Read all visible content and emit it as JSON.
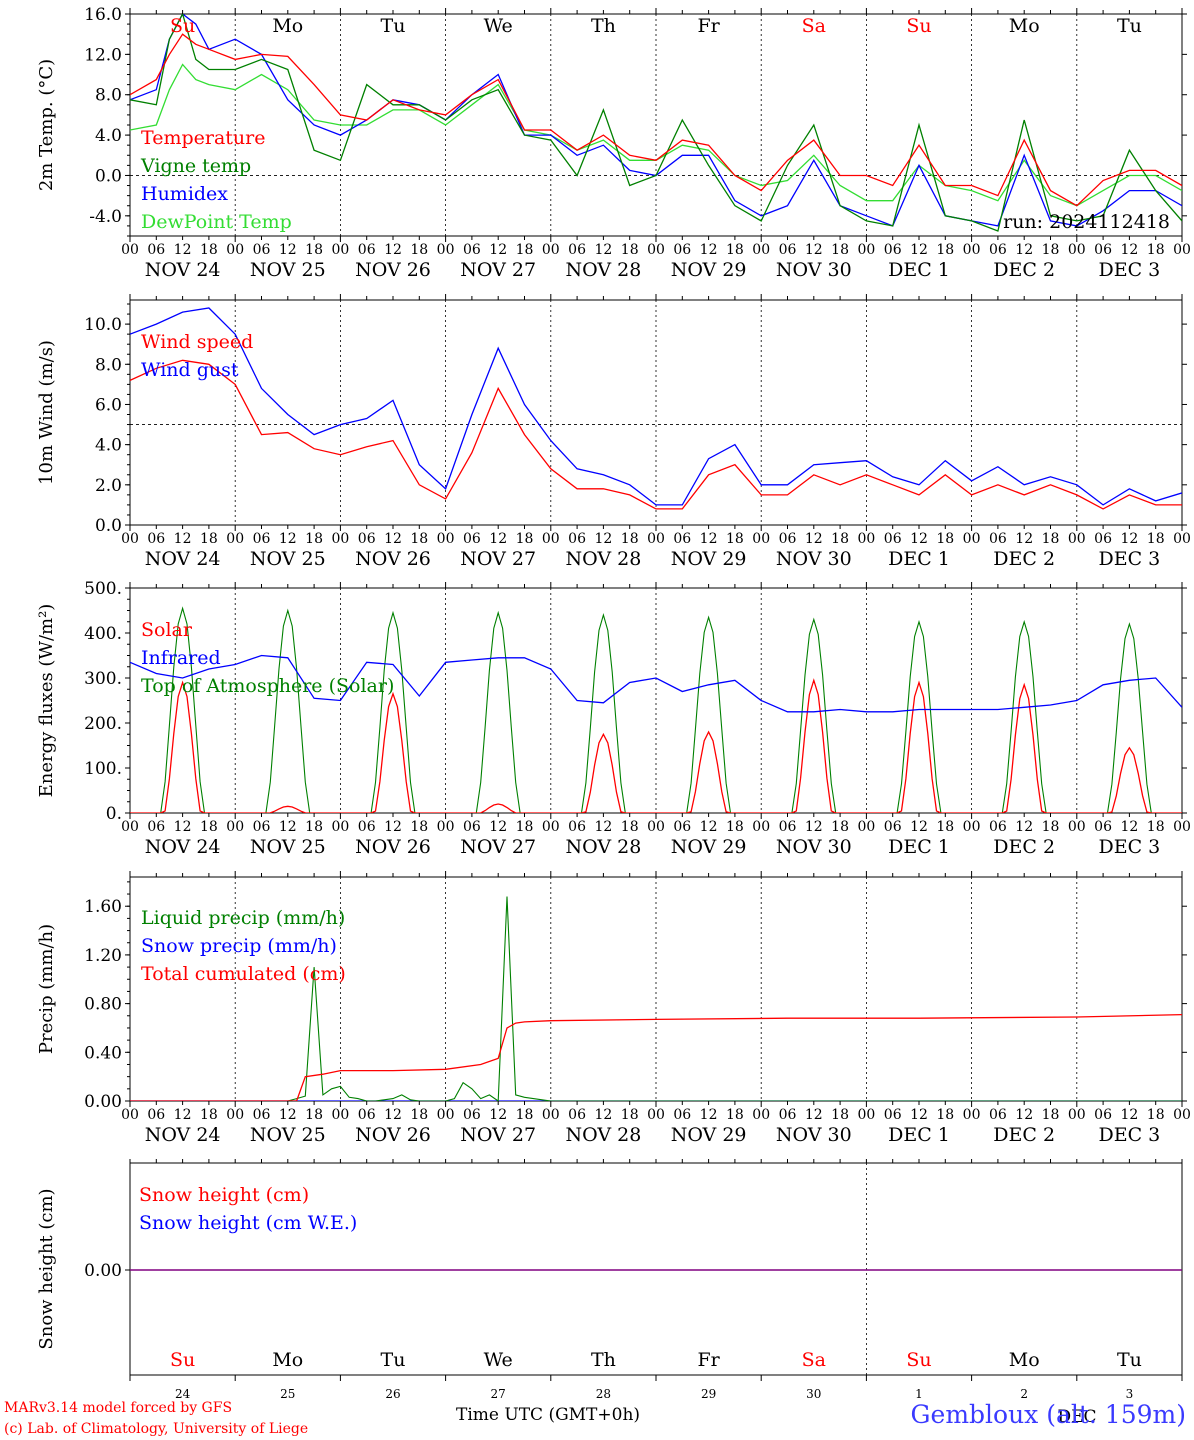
{
  "meta": {
    "credit_line1": "MARv3.14 model forced by GFS",
    "credit_line2": "(c) Lab. of Climatology, University of Liege",
    "xaxis_label": "Time UTC (GMT+0h)",
    "station": "Gembloux (alt. 159m)",
    "run": "run: 2024112418"
  },
  "colors": {
    "red": "#ff0000",
    "green": "#008000",
    "blue": "#0000ff",
    "lightgreen": "#33dd33",
    "purple": "#800080",
    "weekend": "#ff0000",
    "weekday": "#000000"
  },
  "days": {
    "short": [
      "Su",
      "Mo",
      "Tu",
      "We",
      "Th",
      "Fr",
      "Sa",
      "Su",
      "Mo",
      "Tu"
    ],
    "weekend": [
      true,
      false,
      false,
      false,
      false,
      false,
      true,
      true,
      false,
      false
    ],
    "dates": [
      "NOV 24",
      "NOV 25",
      "NOV 26",
      "NOV 27",
      "NOV 28",
      "NOV 29",
      "NOV 30",
      "DEC  1",
      "DEC  2",
      "DEC  3"
    ],
    "hours": [
      "00",
      "06",
      "12",
      "18"
    ],
    "end_hour": "00",
    "bottom_numbers": [
      "24",
      "25",
      "26",
      "27",
      "28",
      "29",
      "30",
      "1",
      "2",
      "3"
    ],
    "bottom_month_marker": "DEC"
  },
  "chart_data": [
    {
      "type": "line",
      "panel": "temperature",
      "ylabel": "2m Temp. (°C)",
      "ylim": [
        -6,
        16
      ],
      "yticks": [
        "16.0",
        "12.0",
        "8.0",
        "4.0",
        "0.0",
        "-4.0"
      ],
      "ytick_values": [
        16,
        12,
        8,
        4,
        0,
        -4
      ],
      "ref_line": 0,
      "x_unit": "hours since NOV 24 00 UTC",
      "x": [
        0,
        6,
        9,
        12,
        15,
        18,
        24,
        30,
        36,
        42,
        48,
        54,
        60,
        66,
        72,
        78,
        84,
        90,
        96,
        102,
        108,
        114,
        120,
        126,
        132,
        138,
        144,
        150,
        156,
        162,
        168,
        174,
        180,
        186,
        192,
        198,
        204,
        210,
        216,
        222,
        228,
        234,
        240
      ],
      "series": [
        {
          "name": "Temperature",
          "color": "red",
          "values": [
            8,
            9.5,
            12,
            14,
            13,
            12.5,
            11.5,
            12,
            11.8,
            9,
            6,
            5.5,
            7.5,
            6.5,
            6,
            8,
            9.5,
            4.5,
            4.5,
            2.5,
            4,
            2,
            1.5,
            3.5,
            3,
            0,
            -1.5,
            1.5,
            3.5,
            0,
            0,
            -1,
            3,
            -1,
            -1,
            -2,
            3.5,
            -1.5,
            -3,
            -0.5,
            0.5,
            0.5,
            -1
          ]
        },
        {
          "name": "Vigne temp",
          "color": "green",
          "values": [
            7.5,
            7,
            13.5,
            16,
            11.5,
            10.5,
            10.5,
            11.5,
            10.5,
            2.5,
            1.5,
            9,
            7,
            7,
            5.5,
            7.5,
            8.5,
            4,
            3.5,
            0,
            6.5,
            -1,
            0,
            5.5,
            1,
            -3,
            -4.5,
            1,
            5,
            -3,
            -4.5,
            -5,
            5,
            -4,
            -4.5,
            -5.5,
            5.5,
            -4,
            -4.5,
            -4,
            2.5,
            -1.5,
            -4.5
          ]
        },
        {
          "name": "Humidex",
          "color": "blue",
          "values": [
            7.5,
            8.5,
            13.5,
            16,
            15,
            12.5,
            13.5,
            12,
            7.5,
            5,
            4,
            5.5,
            7.5,
            7,
            5.5,
            8,
            10,
            4,
            4,
            2,
            3,
            0.5,
            0,
            2,
            2,
            -2.5,
            -4,
            -3,
            1.5,
            -3,
            -4,
            -5,
            1,
            -4,
            -4.5,
            -5,
            2,
            -4.5,
            -5,
            -3.5,
            -1.5,
            -1.5,
            -3
          ]
        },
        {
          "name": "DewPoint Temp",
          "color": "lightgreen",
          "values": [
            4.5,
            5,
            8.5,
            11,
            9.5,
            9,
            8.5,
            10,
            8.5,
            5.5,
            5,
            5,
            6.5,
            6.5,
            5,
            7,
            9,
            4.5,
            4,
            2.5,
            3.5,
            1.5,
            1.5,
            3,
            2.5,
            0,
            -1,
            -0.5,
            2,
            -1,
            -2.5,
            -2.5,
            1,
            -1,
            -1.5,
            -2.5,
            1.5,
            -2,
            -3,
            -1.5,
            0,
            0,
            -1.5
          ]
        }
      ]
    },
    {
      "type": "line",
      "panel": "wind",
      "ylabel": "10m Wind (m/s)",
      "ylim": [
        0,
        11.2
      ],
      "yticks": [
        "10.0",
        "8.0",
        "6.0",
        "4.0",
        "2.0",
        "0.0"
      ],
      "ytick_values": [
        10,
        8,
        6,
        4,
        2,
        0
      ],
      "ref_line": 5,
      "x_unit": "hours since NOV 24 00 UTC",
      "x": [
        0,
        6,
        12,
        18,
        24,
        30,
        36,
        42,
        48,
        54,
        60,
        66,
        72,
        78,
        84,
        90,
        96,
        102,
        108,
        114,
        120,
        126,
        132,
        138,
        144,
        150,
        156,
        162,
        168,
        174,
        180,
        186,
        192,
        198,
        204,
        210,
        216,
        222,
        228,
        234,
        240
      ],
      "series": [
        {
          "name": "Wind speed",
          "color": "red",
          "values": [
            7.2,
            7.8,
            8.2,
            8,
            7,
            4.5,
            4.6,
            3.8,
            3.5,
            3.9,
            4.2,
            2,
            1.3,
            3.6,
            6.8,
            4.5,
            2.8,
            1.8,
            1.8,
            1.5,
            0.8,
            0.8,
            2.5,
            3,
            1.5,
            1.5,
            2.5,
            2,
            2.5,
            2,
            1.5,
            2.5,
            1.5,
            2,
            1.5,
            2,
            1.5,
            0.8,
            1.5,
            1,
            1
          ]
        },
        {
          "name": "Wind gust",
          "color": "blue",
          "values": [
            9.5,
            10,
            10.6,
            10.8,
            9.5,
            6.8,
            5.5,
            4.5,
            5,
            5.3,
            6.2,
            3,
            1.8,
            5.5,
            8.8,
            6,
            4.2,
            2.8,
            2.5,
            2,
            1,
            1,
            3.3,
            4,
            2,
            2,
            3,
            3.1,
            3.2,
            2.4,
            2,
            3.2,
            2.2,
            2.9,
            2,
            2.4,
            2,
            1,
            1.8,
            1.2,
            1.6
          ]
        }
      ]
    },
    {
      "type": "line",
      "panel": "energy",
      "ylabel": "Energy fluxes (W/m²)",
      "ylim": [
        0,
        500
      ],
      "yticks": [
        "500.",
        "400.",
        "300.",
        "200.",
        "100.",
        "0."
      ],
      "ytick_values": [
        500,
        400,
        300,
        200,
        100,
        0
      ],
      "solar_peaks": [
        290,
        15,
        265,
        20,
        175,
        180,
        295,
        290,
        285,
        145
      ],
      "toa_peaks": [
        455,
        450,
        445,
        445,
        440,
        435,
        430,
        425,
        425,
        420
      ],
      "infrared_x": [
        0,
        6,
        12,
        18,
        24,
        30,
        36,
        42,
        48,
        54,
        60,
        66,
        72,
        78,
        84,
        90,
        96,
        102,
        108,
        114,
        120,
        126,
        132,
        138,
        144,
        150,
        156,
        162,
        168,
        174,
        180,
        186,
        192,
        198,
        204,
        210,
        216,
        222,
        228,
        234,
        240
      ],
      "infrared_values": [
        335,
        310,
        300,
        320,
        330,
        350,
        345,
        255,
        250,
        335,
        330,
        260,
        335,
        340,
        345,
        345,
        320,
        250,
        245,
        290,
        300,
        270,
        285,
        295,
        250,
        225,
        225,
        230,
        225,
        225,
        230,
        230,
        230,
        230,
        235,
        240,
        250,
        285,
        295,
        300,
        235
      ],
      "series": [
        {
          "name": "Solar",
          "color": "red"
        },
        {
          "name": "Infrared",
          "color": "blue"
        },
        {
          "name": "Top of Atmosphere (Solar)",
          "color": "green"
        }
      ]
    },
    {
      "type": "line",
      "panel": "precip",
      "ylabel": "Precip (mm/h)",
      "ylim": [
        0,
        1.84
      ],
      "yticks": [
        "1.60",
        "1.20",
        "0.80",
        "0.40",
        "0.00"
      ],
      "ytick_values": [
        1.6,
        1.2,
        0.8,
        0.4,
        0
      ],
      "x_unit": "hours since NOV 24 00 UTC",
      "liquid_x": [
        0,
        36,
        38,
        40,
        42,
        44,
        46,
        48,
        50,
        52,
        54,
        56,
        58,
        60,
        62,
        64,
        66,
        68,
        70,
        72,
        74,
        76,
        78,
        80,
        82,
        84,
        86,
        88,
        90,
        92,
        94,
        96,
        240
      ],
      "liquid_values": [
        0,
        0,
        0.02,
        0.04,
        1.1,
        0.05,
        0.1,
        0.12,
        0.03,
        0.02,
        0,
        0,
        0.01,
        0.02,
        0.05,
        0.01,
        0,
        0,
        0,
        0,
        0.02,
        0.15,
        0.1,
        0.02,
        0.05,
        0,
        1.68,
        0.05,
        0.03,
        0.02,
        0.01,
        0,
        0
      ],
      "cumulated_x": [
        0,
        38,
        40,
        44,
        48,
        52,
        60,
        72,
        80,
        84,
        86,
        88,
        90,
        96,
        120,
        150,
        180,
        216,
        240
      ],
      "cumulated_values": [
        0,
        0,
        0.2,
        0.22,
        0.25,
        0.25,
        0.25,
        0.26,
        0.3,
        0.35,
        0.6,
        0.64,
        0.65,
        0.66,
        0.67,
        0.68,
        0.68,
        0.69,
        0.71
      ],
      "series": [
        {
          "name": "Liquid precip (mm/h)",
          "color": "green"
        },
        {
          "name": "Snow precip (mm/h)",
          "color": "blue"
        },
        {
          "name": "Total cumulated (cm)",
          "color": "red"
        }
      ]
    },
    {
      "type": "line",
      "panel": "snow",
      "ylabel": "Snow height (cm)",
      "yticks": [
        "0.00"
      ],
      "series": [
        {
          "name": "Snow height (cm)",
          "color": "red",
          "values": [
            0,
            0
          ]
        },
        {
          "name": "Snow height (cm W.E.)",
          "color": "blue",
          "values": [
            0,
            0
          ]
        }
      ]
    }
  ]
}
